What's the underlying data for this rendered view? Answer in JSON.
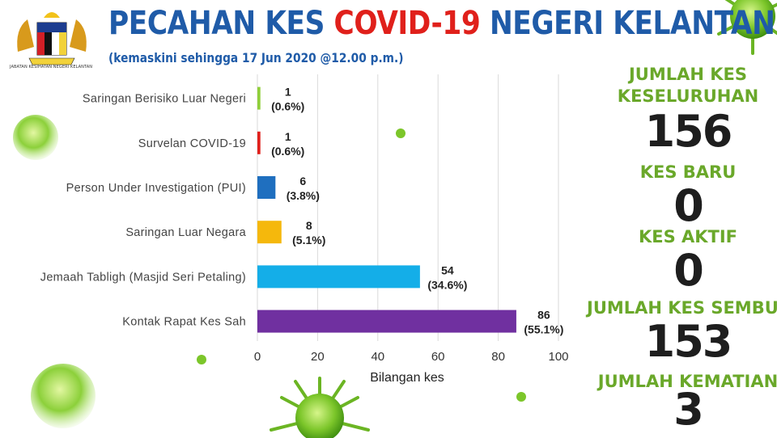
{
  "header": {
    "title_part1": "PECAHAN KES ",
    "title_part2": "COVID-19",
    "title_part3": " NEGERI KELANTAN",
    "subtitle": "(kemaskini sehingga 17 Jun 2020 @12.00 p.m.)",
    "logo_caption": "JABATAN KESIHATAN NEGERI KELANTAN"
  },
  "colors": {
    "title_blue": "#1f5ba8",
    "title_red": "#e0201b",
    "stat_green": "#6aa82a",
    "stat_value": "#1e1e1e"
  },
  "chart_data": {
    "type": "bar",
    "orientation": "horizontal",
    "categories": [
      "Saringan Berisiko Luar Negeri",
      "Survelan COVID-19",
      "Person Under Investigation (PUI)",
      "Saringan Luar Negara",
      "Jemaah Tabligh (Masjid Seri Petaling)",
      "Kontak Rapat Kes Sah"
    ],
    "values": [
      1,
      1,
      6,
      8,
      54,
      86
    ],
    "value_labels": [
      "1",
      "1",
      "6",
      "8",
      "54",
      "86"
    ],
    "percent_labels": [
      "(0.6%)",
      "(0.6%)",
      "(3.8%)",
      "(5.1%)",
      "(34.6%)",
      "(55.1%)"
    ],
    "bar_colors": [
      "#8fcf3a",
      "#e0201b",
      "#1f6fbf",
      "#f5b80c",
      "#14aee8",
      "#7030a0"
    ],
    "xlabel": "Bilangan kes",
    "xlim": [
      0,
      100
    ],
    "xticks": [
      0,
      20,
      40,
      60,
      80,
      100
    ],
    "grid": true
  },
  "stats": [
    {
      "label": "JUMLAH KES",
      "label2": "KESELURUHAN",
      "value": "156"
    },
    {
      "label": "KES BARU",
      "value": "0"
    },
    {
      "label": "KES AKTIF",
      "value": "0"
    },
    {
      "label": "JUMLAH KES SEMBUH",
      "value": "153"
    },
    {
      "label": "JUMLAH KEMATIAN",
      "value": "3"
    }
  ]
}
